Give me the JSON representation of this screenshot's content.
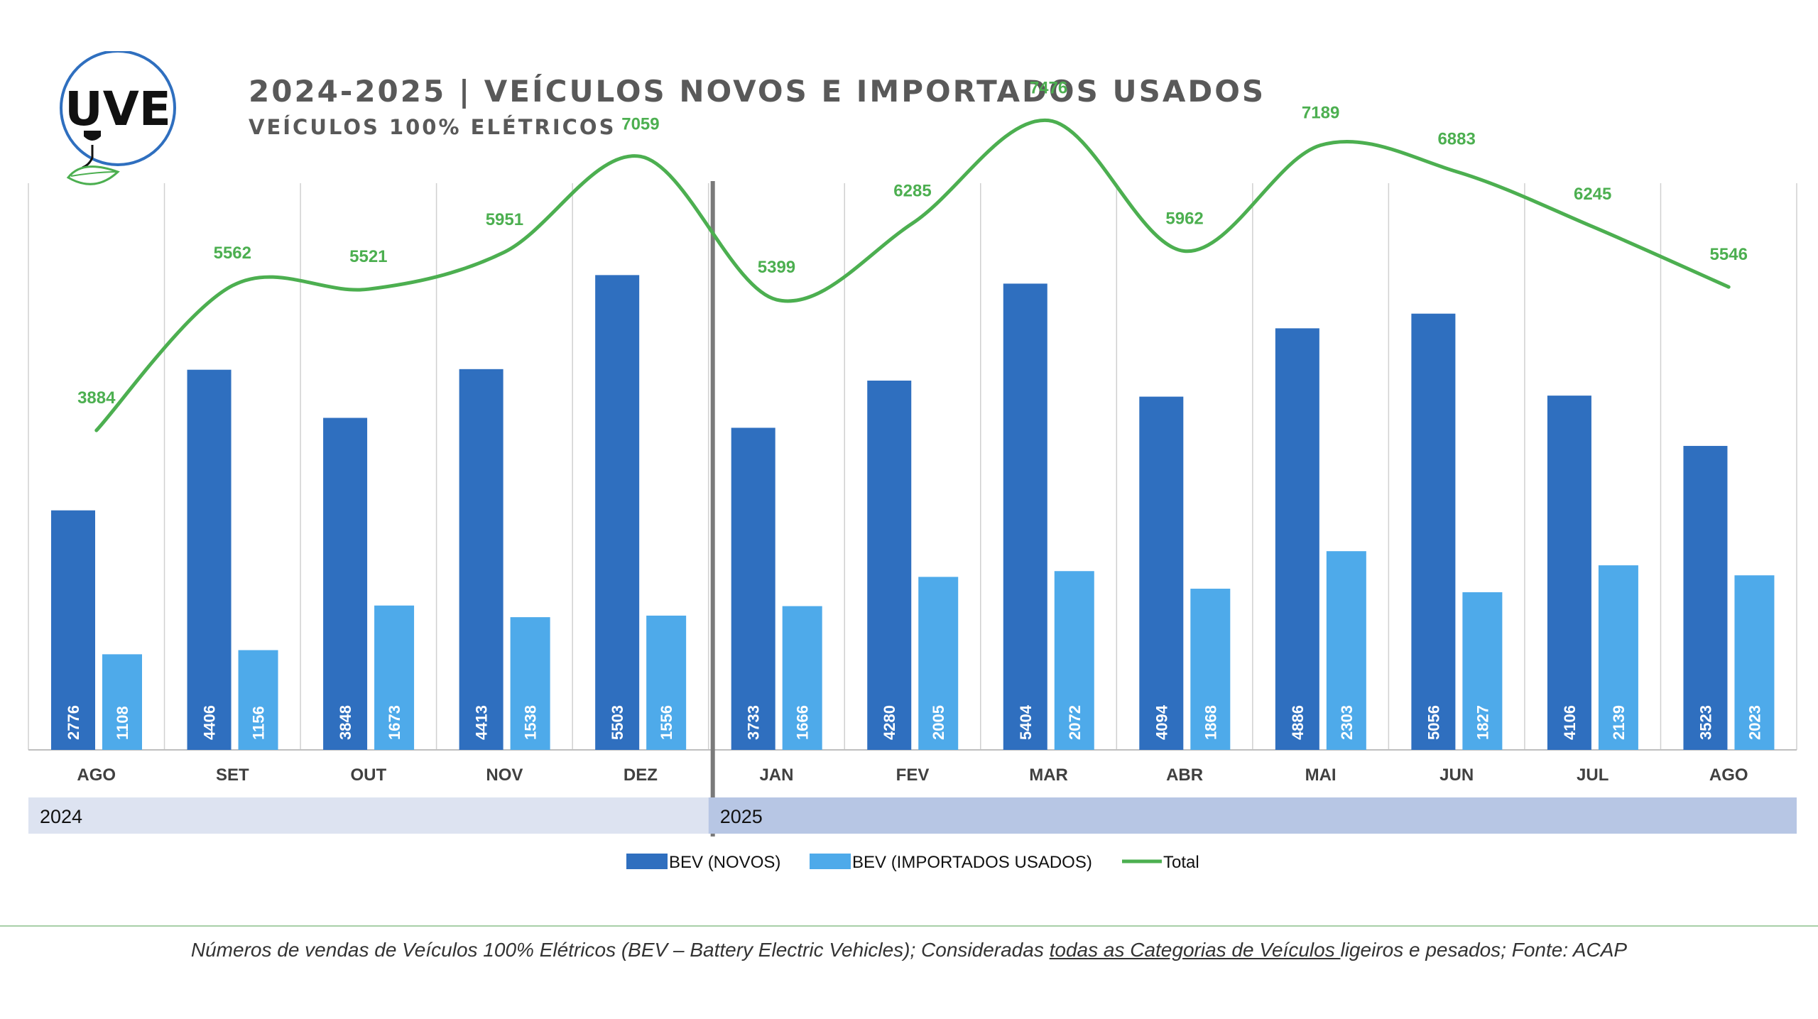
{
  "header": {
    "logo_text": "UVE",
    "title": "2024-2025 | VEÍCULOS NOVOS E IMPORTADOS USADOS",
    "subtitle": "VEÍCULOS 100% ELÉTRICOS"
  },
  "chart_data": {
    "type": "bar",
    "categories": [
      "AGO",
      "SET",
      "OUT",
      "NOV",
      "DEZ",
      "JAN",
      "FEV",
      "MAR",
      "ABR",
      "MAI",
      "JUN",
      "JUL",
      "AGO"
    ],
    "year_groups": [
      {
        "label": "2024",
        "count": 5
      },
      {
        "label": "2025",
        "count": 8
      }
    ],
    "series": [
      {
        "name": "BEV (NOVOS)",
        "type": "bar",
        "color": "#2f6fbf",
        "values": [
          2776,
          4406,
          3848,
          4413,
          5503,
          3733,
          4280,
          5404,
          4094,
          4886,
          5056,
          4106,
          3523
        ]
      },
      {
        "name": "BEV (IMPORTADOS USADOS)",
        "type": "bar",
        "color": "#4eaaea",
        "values": [
          1108,
          1156,
          1673,
          1538,
          1556,
          1666,
          2005,
          2072,
          1868,
          2303,
          1827,
          2139,
          2023
        ]
      },
      {
        "name": "Total",
        "type": "line",
        "color": "#4caf50",
        "values": [
          3884,
          5562,
          5521,
          5951,
          7059,
          5399,
          6285,
          7476,
          5962,
          7189,
          6883,
          6245,
          5546
        ]
      }
    ],
    "ylim": [
      0,
      8000
    ],
    "grid": "vertical",
    "legend": "bottom",
    "colors": {
      "year_2024_band": "#dde3f1",
      "year_2025_band": "#b7c6e4",
      "divider": "#7a7a7a",
      "gridline": "#d0d0d0"
    }
  },
  "footnote": {
    "part1": "Números de vendas de Veículos 100% Elétricos (BEV – Battery Electric Vehicles); Consideradas ",
    "underlined": "todas as Categorias de Veículos ",
    "part2": "ligeiros e pesados; Fonte: ACAP"
  }
}
